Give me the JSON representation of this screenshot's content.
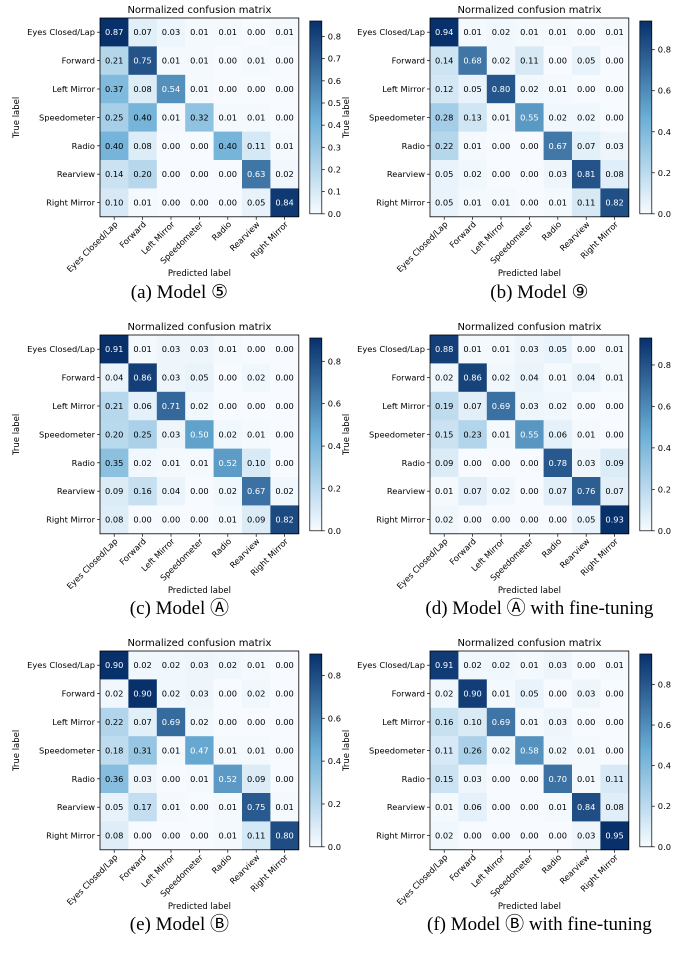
{
  "figure": {
    "panel_title": "Normalized confusion matrix",
    "ylabel": "True label",
    "xlabel": "Predicted label"
  },
  "captions": [
    "(a) Model ⑤",
    "(b) Model ⑨",
    "(c) Model Ⓐ",
    "(d) Model Ⓐ with fine-tuning",
    "(e) Model Ⓑ",
    "(f) Model Ⓑ with fine-tuning"
  ],
  "colors": {
    "low": "#f7fbff",
    "high": "#08306b",
    "colormap": "Blues"
  },
  "chart_data": [
    {
      "type": "heatmap",
      "title": "Normalized confusion matrix",
      "caption": "(a) Model ⑤",
      "xlabel": "Predicted label",
      "ylabel": "True label",
      "labels": [
        "Eyes Closed/Lap",
        "Forward",
        "Left Mirror",
        "Speedometer",
        "Radio",
        "Rearview",
        "Right Mirror"
      ],
      "colorbar": {
        "vmin": 0.0,
        "vmax": 0.87,
        "ticks": [
          "0.0",
          "0.1",
          "0.2",
          "0.3",
          "0.4",
          "0.5",
          "0.6",
          "0.7",
          "0.8"
        ]
      },
      "values": [
        [
          0.87,
          0.07,
          0.03,
          0.01,
          0.01,
          0.0,
          0.01
        ],
        [
          0.21,
          0.75,
          0.01,
          0.01,
          0.0,
          0.01,
          0.0
        ],
        [
          0.37,
          0.08,
          0.54,
          0.01,
          0.0,
          0.0,
          0.0
        ],
        [
          0.25,
          0.4,
          0.01,
          0.32,
          0.01,
          0.01,
          0.0
        ],
        [
          0.4,
          0.08,
          0.0,
          0.0,
          0.4,
          0.11,
          0.01
        ],
        [
          0.14,
          0.2,
          0.0,
          0.0,
          0.0,
          0.63,
          0.02
        ],
        [
          0.1,
          0.01,
          0.0,
          0.0,
          0.0,
          0.05,
          0.84
        ]
      ]
    },
    {
      "type": "heatmap",
      "title": "Normalized confusion matrix",
      "caption": "(b) Model ⑨",
      "xlabel": "Predicted label",
      "ylabel": "True label",
      "labels": [
        "Eyes Closed/Lap",
        "Forward",
        "Left Mirror",
        "Speedometer",
        "Radio",
        "Rearview",
        "Right Mirror"
      ],
      "colorbar": {
        "vmin": 0.0,
        "vmax": 0.94,
        "ticks": [
          "0.0",
          "0.2",
          "0.4",
          "0.6",
          "0.8"
        ]
      },
      "values": [
        [
          0.94,
          0.01,
          0.02,
          0.01,
          0.01,
          0.0,
          0.01
        ],
        [
          0.14,
          0.68,
          0.02,
          0.11,
          0.0,
          0.05,
          0.0
        ],
        [
          0.12,
          0.05,
          0.8,
          0.02,
          0.01,
          0.0,
          0.0
        ],
        [
          0.28,
          0.13,
          0.01,
          0.55,
          0.02,
          0.02,
          0.0
        ],
        [
          0.22,
          0.01,
          0.0,
          0.0,
          0.67,
          0.07,
          0.03
        ],
        [
          0.05,
          0.02,
          0.0,
          0.0,
          0.03,
          0.81,
          0.08
        ],
        [
          0.05,
          0.01,
          0.01,
          0.0,
          0.01,
          0.11,
          0.82
        ]
      ]
    },
    {
      "type": "heatmap",
      "title": "Normalized confusion matrix",
      "caption": "(c) Model Ⓐ",
      "xlabel": "Predicted label",
      "ylabel": "True label",
      "labels": [
        "Eyes Closed/Lap",
        "Forward",
        "Left Mirror",
        "Speedometer",
        "Radio",
        "Rearview",
        "Right Mirror"
      ],
      "colorbar": {
        "vmin": 0.0,
        "vmax": 0.91,
        "ticks": [
          "0.0",
          "0.2",
          "0.4",
          "0.6",
          "0.8"
        ]
      },
      "values": [
        [
          0.91,
          0.01,
          0.03,
          0.03,
          0.01,
          0.0,
          0.0
        ],
        [
          0.04,
          0.86,
          0.03,
          0.05,
          0.0,
          0.02,
          0.0
        ],
        [
          0.21,
          0.06,
          0.71,
          0.02,
          0.0,
          0.0,
          0.0
        ],
        [
          0.2,
          0.25,
          0.03,
          0.5,
          0.02,
          0.01,
          0.0
        ],
        [
          0.35,
          0.02,
          0.01,
          0.01,
          0.52,
          0.1,
          0.0
        ],
        [
          0.09,
          0.16,
          0.04,
          0.0,
          0.02,
          0.67,
          0.02
        ],
        [
          0.08,
          0.0,
          0.0,
          0.0,
          0.01,
          0.09,
          0.82
        ]
      ]
    },
    {
      "type": "heatmap",
      "title": "Normalized confusion matrix",
      "caption": "(d) Model Ⓐ with fine-tuning",
      "xlabel": "Predicted label",
      "ylabel": "True label",
      "labels": [
        "Eyes Closed/Lap",
        "Forward",
        "Left Mirror",
        "Speedometer",
        "Radio",
        "Rearview",
        "Right Mirror"
      ],
      "colorbar": {
        "vmin": 0.0,
        "vmax": 0.93,
        "ticks": [
          "0.0",
          "0.2",
          "0.4",
          "0.6",
          "0.8"
        ]
      },
      "values": [
        [
          0.88,
          0.01,
          0.01,
          0.03,
          0.05,
          0.0,
          0.01
        ],
        [
          0.02,
          0.86,
          0.02,
          0.04,
          0.01,
          0.04,
          0.01
        ],
        [
          0.19,
          0.07,
          0.69,
          0.03,
          0.02,
          0.0,
          0.0
        ],
        [
          0.15,
          0.23,
          0.01,
          0.55,
          0.06,
          0.01,
          0.0
        ],
        [
          0.09,
          0.0,
          0.0,
          0.0,
          0.78,
          0.03,
          0.09
        ],
        [
          0.01,
          0.07,
          0.02,
          0.0,
          0.07,
          0.76,
          0.07
        ],
        [
          0.02,
          0.0,
          0.0,
          0.0,
          0.0,
          0.05,
          0.93
        ]
      ]
    },
    {
      "type": "heatmap",
      "title": "Normalized confusion matrix",
      "caption": "(e) Model Ⓑ",
      "xlabel": "Predicted label",
      "ylabel": "True label",
      "labels": [
        "Eyes Closed/Lap",
        "Forward",
        "Left Mirror",
        "Speedometer",
        "Radio",
        "Rearview",
        "Right Mirror"
      ],
      "colorbar": {
        "vmin": 0.0,
        "vmax": 0.9,
        "ticks": [
          "0.0",
          "0.2",
          "0.4",
          "0.6",
          "0.8"
        ]
      },
      "values": [
        [
          0.9,
          0.02,
          0.02,
          0.03,
          0.02,
          0.01,
          0.0
        ],
        [
          0.02,
          0.9,
          0.02,
          0.03,
          0.0,
          0.02,
          0.0
        ],
        [
          0.22,
          0.07,
          0.69,
          0.02,
          0.0,
          0.0,
          0.0
        ],
        [
          0.18,
          0.31,
          0.01,
          0.47,
          0.01,
          0.01,
          0.0
        ],
        [
          0.36,
          0.03,
          0.0,
          0.01,
          0.52,
          0.09,
          0.0
        ],
        [
          0.05,
          0.17,
          0.01,
          0.0,
          0.01,
          0.75,
          0.01
        ],
        [
          0.08,
          0.0,
          0.0,
          0.0,
          0.01,
          0.11,
          0.8
        ]
      ]
    },
    {
      "type": "heatmap",
      "title": "Normalized confusion matrix",
      "caption": "(f) Model Ⓑ with fine-tuning",
      "xlabel": "Predicted label",
      "ylabel": "True label",
      "labels": [
        "Eyes Closed/Lap",
        "Forward",
        "Left Mirror",
        "Speedometer",
        "Radio",
        "Rearview",
        "Right Mirror"
      ],
      "colorbar": {
        "vmin": 0.0,
        "vmax": 0.95,
        "ticks": [
          "0.0",
          "0.2",
          "0.4",
          "0.6",
          "0.8"
        ]
      },
      "values": [
        [
          0.91,
          0.02,
          0.02,
          0.01,
          0.03,
          0.0,
          0.01
        ],
        [
          0.02,
          0.9,
          0.01,
          0.05,
          0.0,
          0.03,
          0.0
        ],
        [
          0.16,
          0.1,
          0.69,
          0.01,
          0.03,
          0.0,
          0.0
        ],
        [
          0.11,
          0.26,
          0.02,
          0.58,
          0.02,
          0.01,
          0.0
        ],
        [
          0.15,
          0.03,
          0.0,
          0.0,
          0.7,
          0.01,
          0.11
        ],
        [
          0.01,
          0.06,
          0.0,
          0.0,
          0.01,
          0.84,
          0.08
        ],
        [
          0.02,
          0.0,
          0.0,
          0.0,
          0.0,
          0.03,
          0.95
        ]
      ]
    }
  ]
}
